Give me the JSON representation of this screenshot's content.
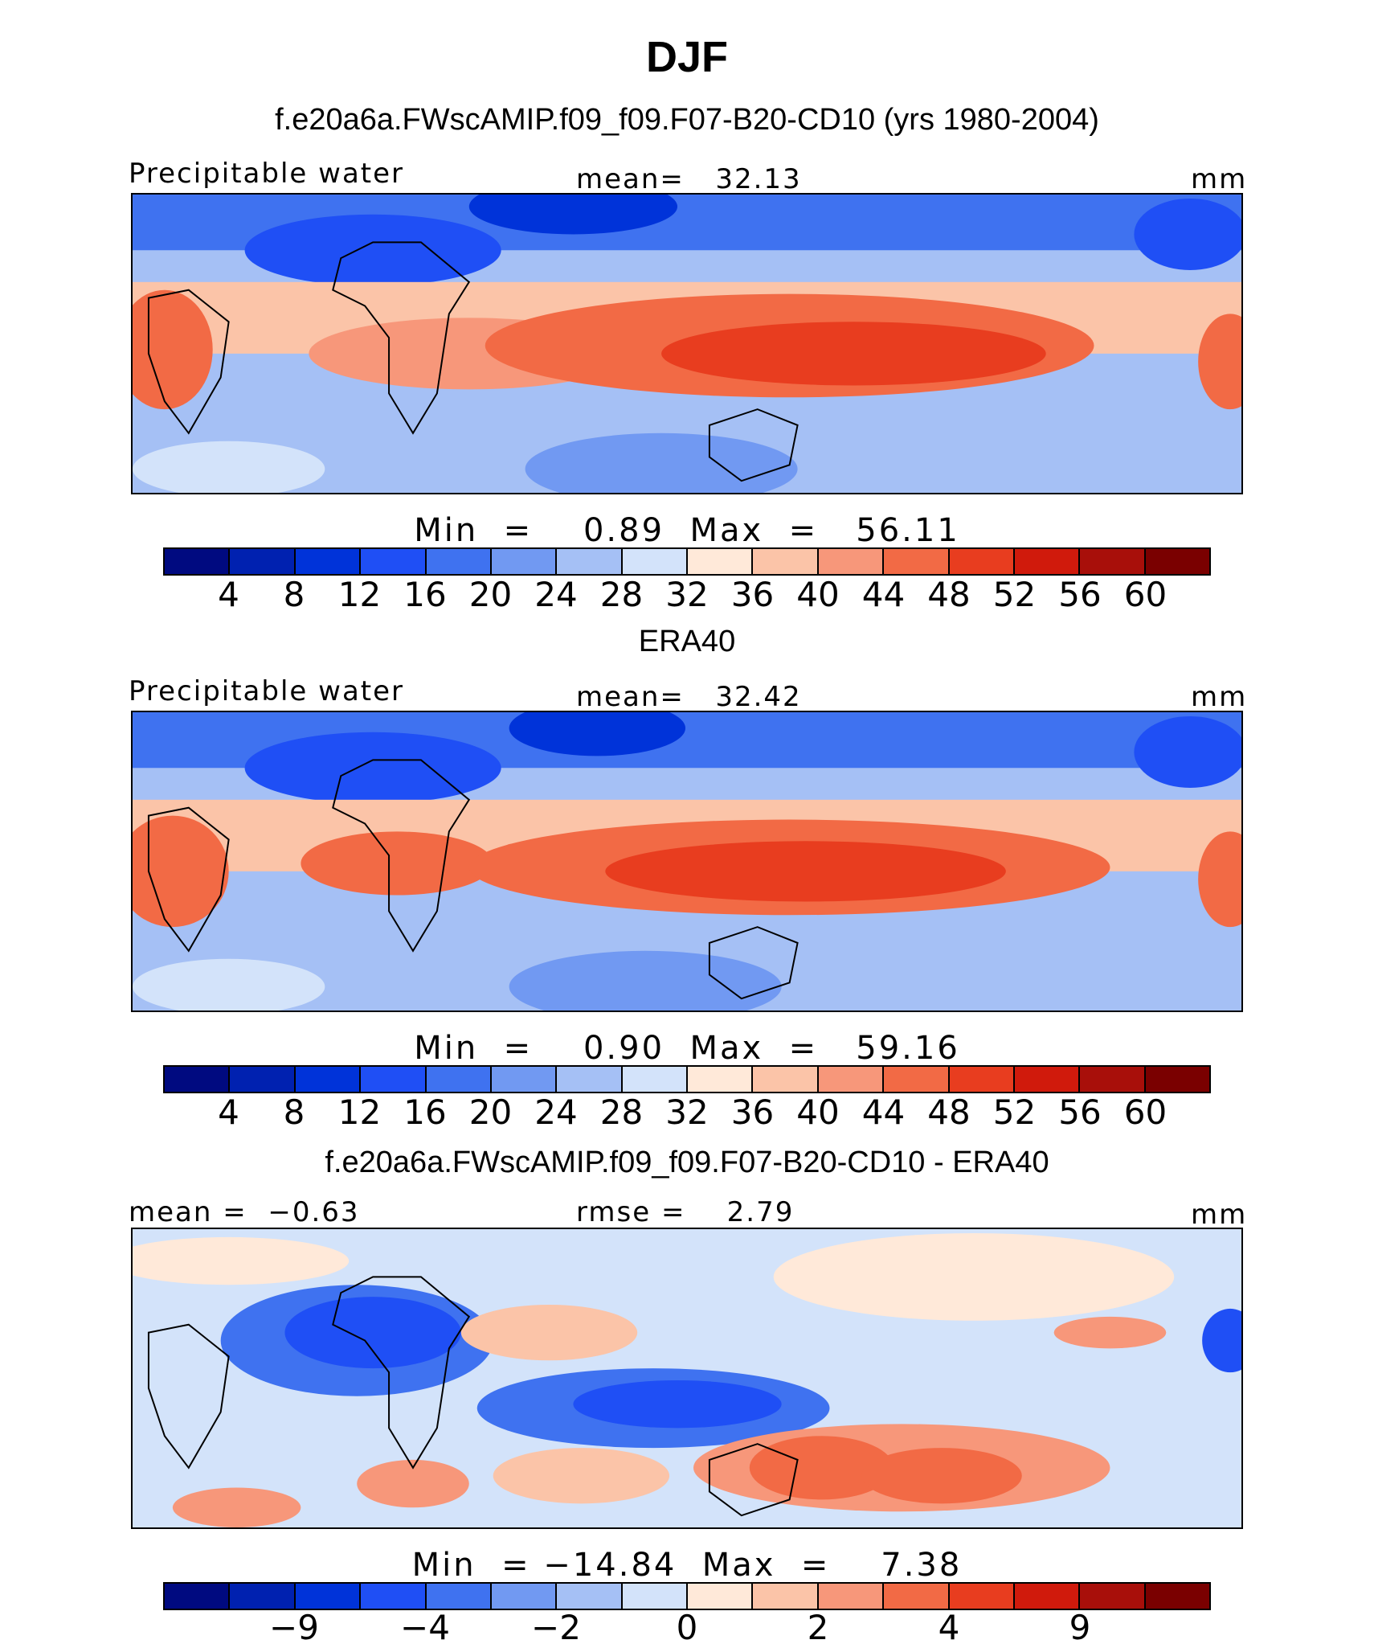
{
  "title": "DJF",
  "colors": {
    "absolute": [
      "#000a80",
      "#0021b0",
      "#0033d9",
      "#1f4ff5",
      "#3f72f0",
      "#7199f2",
      "#a5c0f5",
      "#d3e3fa",
      "#ffe9d9",
      "#fbc4a8",
      "#f7977a",
      "#f26a45",
      "#e83d1f",
      "#d01a0c",
      "#a80f0a",
      "#7a0000"
    ],
    "difference": [
      "#000a80",
      "#0021b0",
      "#0033d9",
      "#1f4ff5",
      "#3f72f0",
      "#7199f2",
      "#a5c0f5",
      "#d3e3fa",
      "#ffe9d9",
      "#fbc4a8",
      "#f7977a",
      "#f26a45",
      "#e83d1f",
      "#d01a0c",
      "#a80f0a",
      "#7a0000"
    ]
  },
  "panels": [
    {
      "subtitle": "f.e20a6a.FWscAMIP.f09_f09.F07-B20-CD10 (yrs 1980-2004)",
      "left_label": "Precipitable water",
      "center_label": "mean=   32.13",
      "right_label": "mm",
      "minmax": "Min  =    0.89  Max  =   56.11",
      "colorbar_ticks": [
        "4",
        "8",
        "12",
        "16",
        "20",
        "24",
        "28",
        "32",
        "36",
        "40",
        "44",
        "48",
        "52",
        "56",
        "60"
      ]
    },
    {
      "subtitle": "ERA40",
      "left_label": "Precipitable water",
      "center_label": "mean=   32.42",
      "right_label": "mm",
      "minmax": "Min  =    0.90  Max  =   59.16",
      "colorbar_ticks": [
        "4",
        "8",
        "12",
        "16",
        "20",
        "24",
        "28",
        "32",
        "36",
        "40",
        "44",
        "48",
        "52",
        "56",
        "60"
      ]
    },
    {
      "subtitle": "f.e20a6a.FWscAMIP.f09_f09.F07-B20-CD10 - ERA40",
      "left_label": "mean =  −0.63",
      "center_label": "rmse =    2.79",
      "right_label": "mm",
      "minmax": "Min  = −14.84  Max  =    7.38",
      "colorbar_ticks": [
        "−9",
        "−4",
        "−2",
        "0",
        "2",
        "4",
        "9"
      ]
    }
  ]
}
